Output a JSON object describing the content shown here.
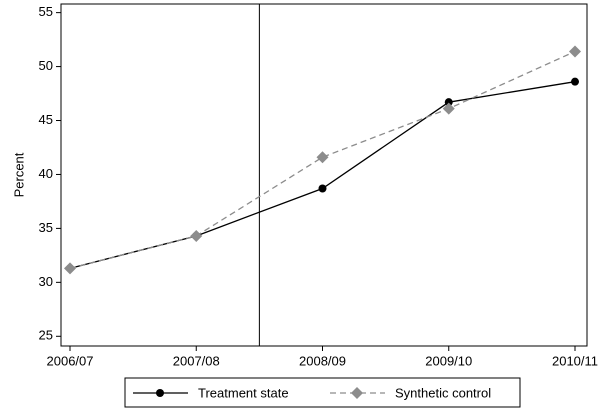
{
  "chart_data": {
    "type": "line",
    "y_label": "Percent",
    "categories": [
      "2006/07",
      "2007/08",
      "2008/09",
      "2009/10",
      "2010/11"
    ],
    "series": [
      {
        "name": "Treatment state",
        "color": "#000000",
        "marker": "circle",
        "dash": "solid",
        "values": [
          31.3,
          34.3,
          38.7,
          46.7,
          48.6
        ]
      },
      {
        "name": "Synthetic control",
        "color": "#8c8c8c",
        "marker": "diamond",
        "dash": "dashed",
        "values": [
          31.3,
          34.3,
          41.6,
          46.1,
          51.4
        ]
      }
    ],
    "ylim": [
      24.1,
      55.8
    ],
    "yticks": [
      25,
      30,
      35,
      40,
      45,
      50,
      55
    ],
    "reference_line_x": 1.5,
    "grid": false
  }
}
